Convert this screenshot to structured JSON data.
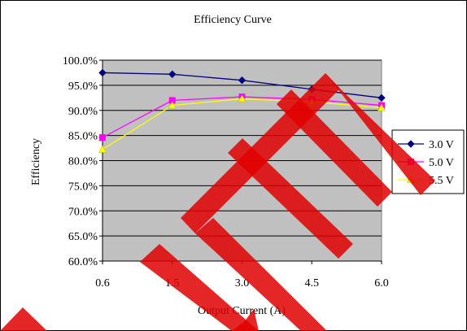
{
  "chart_data": {
    "type": "line",
    "title": "Efficiency Curve",
    "xlabel": "Output Current (A)",
    "ylabel": "Efficiency",
    "categories": [
      "0.6",
      "1.5",
      "3.0",
      "4.5",
      "6.0"
    ],
    "ylim": [
      0.6,
      1.0
    ],
    "y_ticks": [
      "60.0%",
      "65.0%",
      "70.0%",
      "75.0%",
      "80.0%",
      "85.0%",
      "90.0%",
      "95.0%",
      "100.0%"
    ],
    "grid": "horizontal",
    "plot_background": "#c0c0c0",
    "legend_position": "right",
    "series": [
      {
        "name": "3.0 V",
        "color": "#000080",
        "marker": "diamond",
        "values": [
          0.975,
          0.972,
          0.96,
          0.942,
          0.925
        ]
      },
      {
        "name": "5.0 V",
        "color": "#ff00ff",
        "marker": "square",
        "values": [
          0.846,
          0.92,
          0.927,
          0.922,
          0.91
        ]
      },
      {
        "name": "5.5 V",
        "color": "#ffff00",
        "marker": "triangle",
        "values": [
          0.822,
          0.91,
          0.923,
          0.917,
          0.905
        ]
      }
    ]
  },
  "watermark": {
    "text": "LE",
    "color": "#e00000"
  }
}
